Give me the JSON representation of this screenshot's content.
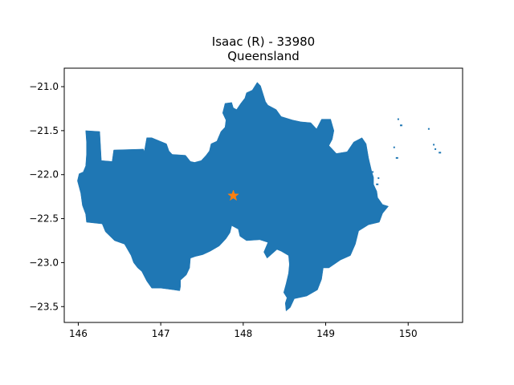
{
  "title": {
    "line1": "Isaac (R) - 33980",
    "line2": "Queensland"
  },
  "colors": {
    "region_fill": "#1f77b4",
    "marker": "#ff7f0e",
    "axis": "#000000",
    "background": "#ffffff"
  },
  "chart_data": {
    "type": "map",
    "title": "Isaac (R) - 33980\nQueensland",
    "xlim": [
      145.83,
      150.66
    ],
    "ylim": [
      -23.68,
      -20.79
    ],
    "x_ticks": [
      146,
      147,
      148,
      149,
      150
    ],
    "x_tick_labels": [
      "146",
      "147",
      "148",
      "149",
      "150"
    ],
    "y_ticks": [
      -21.0,
      -21.5,
      -22.0,
      -22.5,
      -23.0,
      -23.5
    ],
    "y_tick_labels": [
      "−21.0",
      "−21.5",
      "−22.0",
      "−22.5",
      "−23.0",
      "−23.5"
    ],
    "grid": false,
    "marker": {
      "symbol": "star",
      "lon": 147.88,
      "lat": -22.24
    },
    "region_outline": [
      [
        146.09,
        -21.5
      ],
      [
        146.26,
        -21.51
      ],
      [
        146.28,
        -21.84
      ],
      [
        146.41,
        -21.85
      ],
      [
        146.43,
        -21.72
      ],
      [
        146.79,
        -21.71
      ],
      [
        146.8,
        -21.74
      ],
      [
        146.83,
        -21.58
      ],
      [
        146.89,
        -21.58
      ],
      [
        147.07,
        -21.65
      ],
      [
        147.1,
        -21.73
      ],
      [
        147.14,
        -21.77
      ],
      [
        147.3,
        -21.78
      ],
      [
        147.36,
        -21.85
      ],
      [
        147.41,
        -21.86
      ],
      [
        147.49,
        -21.84
      ],
      [
        147.55,
        -21.78
      ],
      [
        147.59,
        -21.73
      ],
      [
        147.61,
        -21.65
      ],
      [
        147.68,
        -21.62
      ],
      [
        147.73,
        -21.51
      ],
      [
        147.78,
        -21.46
      ],
      [
        147.79,
        -21.38
      ],
      [
        147.75,
        -21.3
      ],
      [
        147.78,
        -21.19
      ],
      [
        147.86,
        -21.18
      ],
      [
        147.88,
        -21.24
      ],
      [
        147.92,
        -21.26
      ],
      [
        147.97,
        -21.19
      ],
      [
        148.02,
        -21.13
      ],
      [
        148.04,
        -21.07
      ],
      [
        148.11,
        -21.04
      ],
      [
        148.17,
        -20.95
      ],
      [
        148.21,
        -20.99
      ],
      [
        148.27,
        -21.17
      ],
      [
        148.3,
        -21.21
      ],
      [
        148.4,
        -21.26
      ],
      [
        148.46,
        -21.34
      ],
      [
        148.6,
        -21.38
      ],
      [
        148.7,
        -21.4
      ],
      [
        148.82,
        -21.41
      ],
      [
        148.89,
        -21.48
      ],
      [
        148.95,
        -21.37
      ],
      [
        149.06,
        -21.37
      ],
      [
        149.1,
        -21.5
      ],
      [
        149.08,
        -21.6
      ],
      [
        149.04,
        -21.67
      ],
      [
        149.13,
        -21.76
      ],
      [
        149.26,
        -21.74
      ],
      [
        149.34,
        -21.63
      ],
      [
        149.44,
        -21.58
      ],
      [
        149.49,
        -21.65
      ],
      [
        149.52,
        -21.81
      ],
      [
        149.56,
        -21.97
      ],
      [
        149.58,
        -22.03
      ],
      [
        149.58,
        -22.11
      ],
      [
        149.62,
        -22.19
      ],
      [
        149.63,
        -22.26
      ],
      [
        149.69,
        -22.34
      ],
      [
        149.76,
        -22.36
      ],
      [
        149.69,
        -22.44
      ],
      [
        149.65,
        -22.54
      ],
      [
        149.52,
        -22.57
      ],
      [
        149.4,
        -22.64
      ],
      [
        149.36,
        -22.79
      ],
      [
        149.3,
        -22.92
      ],
      [
        149.18,
        -22.97
      ],
      [
        149.04,
        -23.06
      ],
      [
        148.97,
        -23.06
      ],
      [
        148.95,
        -23.19
      ],
      [
        148.9,
        -23.31
      ],
      [
        148.77,
        -23.38
      ],
      [
        148.62,
        -23.41
      ],
      [
        148.57,
        -23.51
      ],
      [
        148.52,
        -23.55
      ],
      [
        148.51,
        -23.46
      ],
      [
        148.53,
        -23.4
      ],
      [
        148.49,
        -23.34
      ],
      [
        148.52,
        -23.24
      ],
      [
        148.55,
        -23.12
      ],
      [
        148.56,
        -23.02
      ],
      [
        148.55,
        -22.92
      ],
      [
        148.46,
        -22.87
      ],
      [
        148.41,
        -22.85
      ],
      [
        148.29,
        -22.95
      ],
      [
        148.25,
        -22.88
      ],
      [
        148.3,
        -22.77
      ],
      [
        148.2,
        -22.74
      ],
      [
        148.04,
        -22.75
      ],
      [
        147.96,
        -22.7
      ],
      [
        147.94,
        -22.62
      ],
      [
        147.86,
        -22.58
      ],
      [
        147.84,
        -22.66
      ],
      [
        147.79,
        -22.73
      ],
      [
        147.71,
        -22.81
      ],
      [
        147.6,
        -22.87
      ],
      [
        147.51,
        -22.91
      ],
      [
        147.42,
        -22.93
      ],
      [
        147.36,
        -22.95
      ],
      [
        147.35,
        -23.06
      ],
      [
        147.31,
        -23.14
      ],
      [
        147.24,
        -23.2
      ],
      [
        147.24,
        -23.27
      ],
      [
        147.23,
        -23.32
      ],
      [
        147.16,
        -23.31
      ],
      [
        147.08,
        -23.3
      ],
      [
        147.0,
        -23.29
      ],
      [
        146.89,
        -23.29
      ],
      [
        146.83,
        -23.21
      ],
      [
        146.77,
        -23.1
      ],
      [
        146.72,
        -23.06
      ],
      [
        146.67,
        -23.0
      ],
      [
        146.64,
        -22.92
      ],
      [
        146.56,
        -22.79
      ],
      [
        146.44,
        -22.75
      ],
      [
        146.33,
        -22.65
      ],
      [
        146.29,
        -22.56
      ],
      [
        146.1,
        -22.54
      ],
      [
        146.09,
        -22.45
      ],
      [
        146.05,
        -22.35
      ],
      [
        146.03,
        -22.21
      ],
      [
        145.99,
        -22.07
      ],
      [
        146.01,
        -21.99
      ],
      [
        146.06,
        -21.97
      ],
      [
        146.09,
        -21.9
      ],
      [
        146.1,
        -21.77
      ],
      [
        146.1,
        -21.63
      ]
    ],
    "islands": [
      [
        149.88,
        -21.37
      ],
      [
        149.91,
        -21.44
      ],
      [
        150.25,
        -21.48
      ],
      [
        150.31,
        -21.66
      ],
      [
        150.38,
        -21.75
      ],
      [
        150.33,
        -21.71
      ],
      [
        149.83,
        -21.69
      ],
      [
        149.86,
        -21.81
      ],
      [
        149.57,
        -21.97
      ],
      [
        149.64,
        -22.04
      ],
      [
        149.62,
        -22.11
      ]
    ]
  }
}
